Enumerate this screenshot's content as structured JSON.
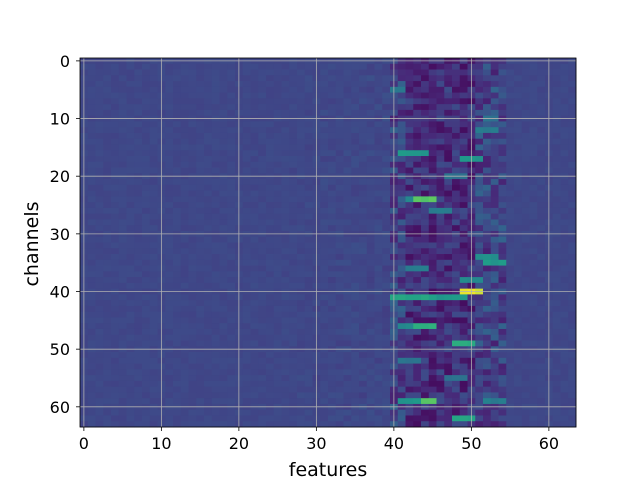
{
  "chart_data": {
    "type": "heatmap",
    "title": "",
    "xlabel": "features",
    "ylabel": "channels",
    "x_range": [
      -0.5,
      63.5
    ],
    "y_range": [
      -0.5,
      63.5
    ],
    "y_inverted": true,
    "n_features": 64,
    "n_channels": 64,
    "colormap": "viridis",
    "grid": true,
    "x_ticks": [
      0,
      10,
      20,
      30,
      40,
      50,
      60
    ],
    "y_ticks": [
      0,
      10,
      20,
      30,
      40,
      50,
      60
    ],
    "background_value": 0.24,
    "active_band": {
      "features": [
        40,
        54
      ],
      "dark_band_features": [
        42,
        50
      ],
      "dark_value": 0.04
    },
    "hotspots": [
      {
        "channel": 40,
        "features": [
          49,
          51
        ],
        "value": 1.0
      },
      {
        "channel": 41,
        "features": [
          40,
          45
        ],
        "value": 0.68
      },
      {
        "channel": 41,
        "features": [
          46,
          49
        ],
        "value": 0.62
      },
      {
        "channel": 24,
        "features": [
          43,
          45
        ],
        "value": 0.85
      },
      {
        "channel": 24,
        "features": [
          42,
          42
        ],
        "value": 0.55
      },
      {
        "channel": 26,
        "features": [
          45,
          47
        ],
        "value": 0.5
      },
      {
        "channel": 46,
        "features": [
          43,
          45
        ],
        "value": 0.75
      },
      {
        "channel": 46,
        "features": [
          41,
          42
        ],
        "value": 0.55
      },
      {
        "channel": 49,
        "features": [
          48,
          50
        ],
        "value": 0.7
      },
      {
        "channel": 59,
        "features": [
          44,
          45
        ],
        "value": 0.85
      },
      {
        "channel": 59,
        "features": [
          41,
          43
        ],
        "value": 0.62
      },
      {
        "channel": 59,
        "features": [
          52,
          54
        ],
        "value": 0.5
      },
      {
        "channel": 62,
        "features": [
          48,
          50
        ],
        "value": 0.7
      },
      {
        "channel": 16,
        "features": [
          41,
          44
        ],
        "value": 0.62
      },
      {
        "channel": 17,
        "features": [
          49,
          51
        ],
        "value": 0.62
      },
      {
        "channel": 34,
        "features": [
          51,
          53
        ],
        "value": 0.58
      },
      {
        "channel": 35,
        "features": [
          52,
          54
        ],
        "value": 0.62
      },
      {
        "channel": 36,
        "features": [
          42,
          44
        ],
        "value": 0.5
      },
      {
        "channel": 38,
        "features": [
          49,
          51
        ],
        "value": 0.55
      },
      {
        "channel": 12,
        "features": [
          51,
          53
        ],
        "value": 0.5
      },
      {
        "channel": 10,
        "features": [
          52,
          53
        ],
        "value": 0.45
      },
      {
        "channel": 5,
        "features": [
          40,
          41
        ],
        "value": 0.5
      },
      {
        "channel": 20,
        "features": [
          47,
          49
        ],
        "value": 0.45
      },
      {
        "channel": 52,
        "features": [
          41,
          43
        ],
        "value": 0.45
      },
      {
        "channel": 55,
        "features": [
          47,
          49
        ],
        "value": 0.45
      }
    ]
  }
}
